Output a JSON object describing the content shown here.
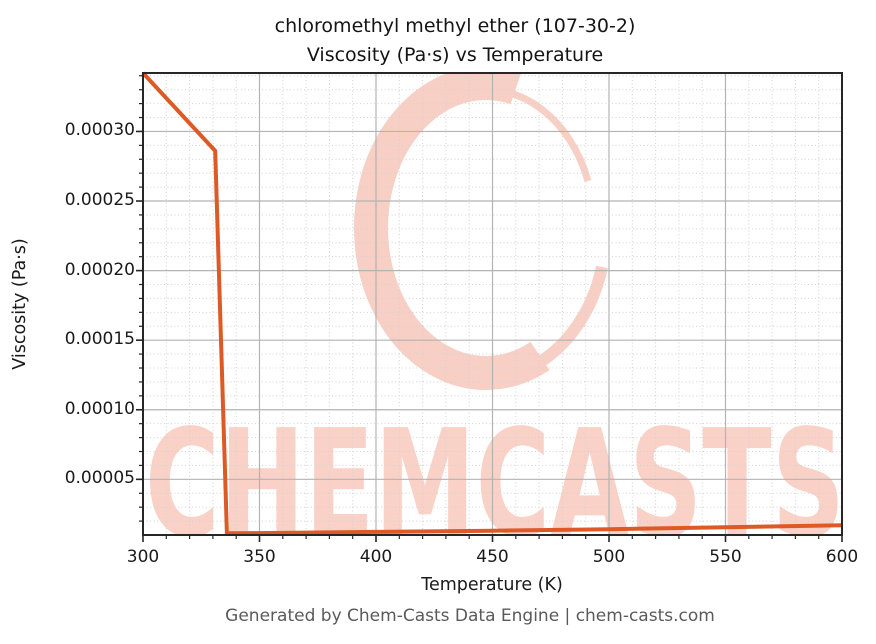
{
  "title": {
    "line1": "chloromethyl methyl ether (107-30-2)",
    "line2": "Viscosity (Pa·s) vs Temperature"
  },
  "axes": {
    "xlabel": "Temperature (K)",
    "ylabel": "Viscosity (Pa·s)"
  },
  "footer": {
    "text": "Generated by Chem-Casts Data Engine | chem-casts.com"
  },
  "watermark": {
    "text": "CHEMCASTS",
    "logo_icon": "brush-circle-logo",
    "color": "#f9d1c7"
  },
  "colors": {
    "line": "#dd5a26",
    "grid_major": "#b3b3b3",
    "grid_minor": "#d2d2d2",
    "spine": "#262626",
    "title_text": "#141414",
    "footer_text": "#5a5a5a"
  },
  "chart_data": {
    "type": "line",
    "title": "chloromethyl methyl ether (107-30-2) — Viscosity (Pa·s) vs Temperature",
    "xlabel": "Temperature (K)",
    "ylabel": "Viscosity (Pa·s)",
    "xlim": [
      300,
      600
    ],
    "ylim": [
      1e-05,
      0.000342
    ],
    "x_major_ticks": [
      300,
      350,
      400,
      450,
      500,
      550,
      600
    ],
    "x_tick_labels": [
      "300",
      "350",
      "400",
      "450",
      "500",
      "550",
      "600"
    ],
    "x_minor_step": 10,
    "y_major_ticks": [
      5e-05,
      0.0001,
      0.00015,
      0.0002,
      0.00025,
      0.0003
    ],
    "y_tick_labels": [
      "0.00005",
      "0.00010",
      "0.00015",
      "0.00020",
      "0.00025",
      "0.00030"
    ],
    "y_minor_step": 1e-05,
    "grid": "major solid, minor dotted",
    "legend": "none",
    "series": [
      {
        "name": "viscosity",
        "x": [
          300,
          331,
          336,
          350,
          400,
          450,
          500,
          550,
          600
        ],
        "y": [
          0.000342,
          0.000286,
          1.12e-05,
          1.14e-05,
          1.22e-05,
          1.31e-05,
          1.42e-05,
          1.55e-05,
          1.7e-05
        ]
      }
    ]
  }
}
